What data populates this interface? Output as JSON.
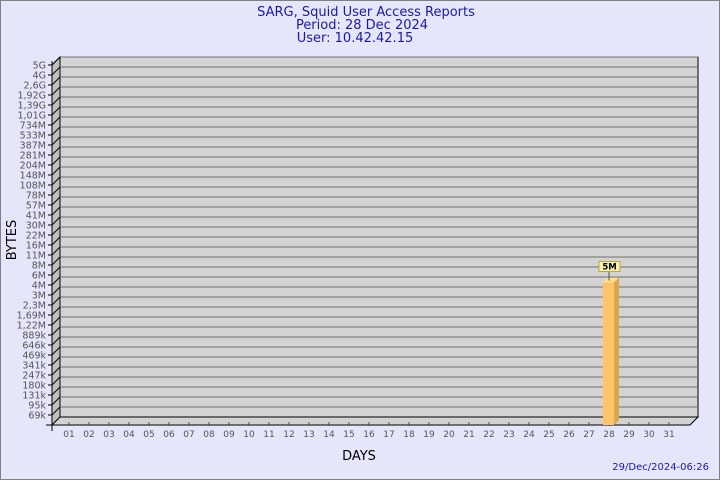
{
  "chart_data": {
    "type": "bar",
    "title": [
      "SARG, Squid User Access Reports",
      "Period: 28 Dec 2024",
      "User: 10.42.42.15"
    ],
    "xlabel": "DAYS",
    "ylabel": "BYTES",
    "y_scale": "log",
    "y_ticks": [
      "5G",
      "4G",
      "2,6G",
      "1,92G",
      "1,39G",
      "1,01G",
      "734M",
      "533M",
      "387M",
      "281M",
      "204M",
      "148M",
      "108M",
      "78M",
      "57M",
      "41M",
      "30M",
      "22M",
      "16M",
      "11M",
      "8M",
      "6M",
      "4M",
      "3M",
      "2,3M",
      "1,69M",
      "1,22M",
      "889k",
      "646k",
      "469k",
      "341k",
      "247k",
      "180k",
      "131k",
      "95k",
      "69k"
    ],
    "categories": [
      "01",
      "02",
      "03",
      "04",
      "05",
      "06",
      "07",
      "08",
      "09",
      "10",
      "11",
      "12",
      "13",
      "14",
      "15",
      "16",
      "17",
      "18",
      "19",
      "20",
      "21",
      "22",
      "23",
      "24",
      "25",
      "26",
      "27",
      "28",
      "29",
      "30",
      "31"
    ],
    "bars": [
      {
        "day": "28",
        "value": 5000000,
        "label": "5M"
      }
    ],
    "grid": true,
    "bar_color": "#ffc46a"
  },
  "footer": {
    "timestamp": "29/Dec/2024-06:26"
  }
}
